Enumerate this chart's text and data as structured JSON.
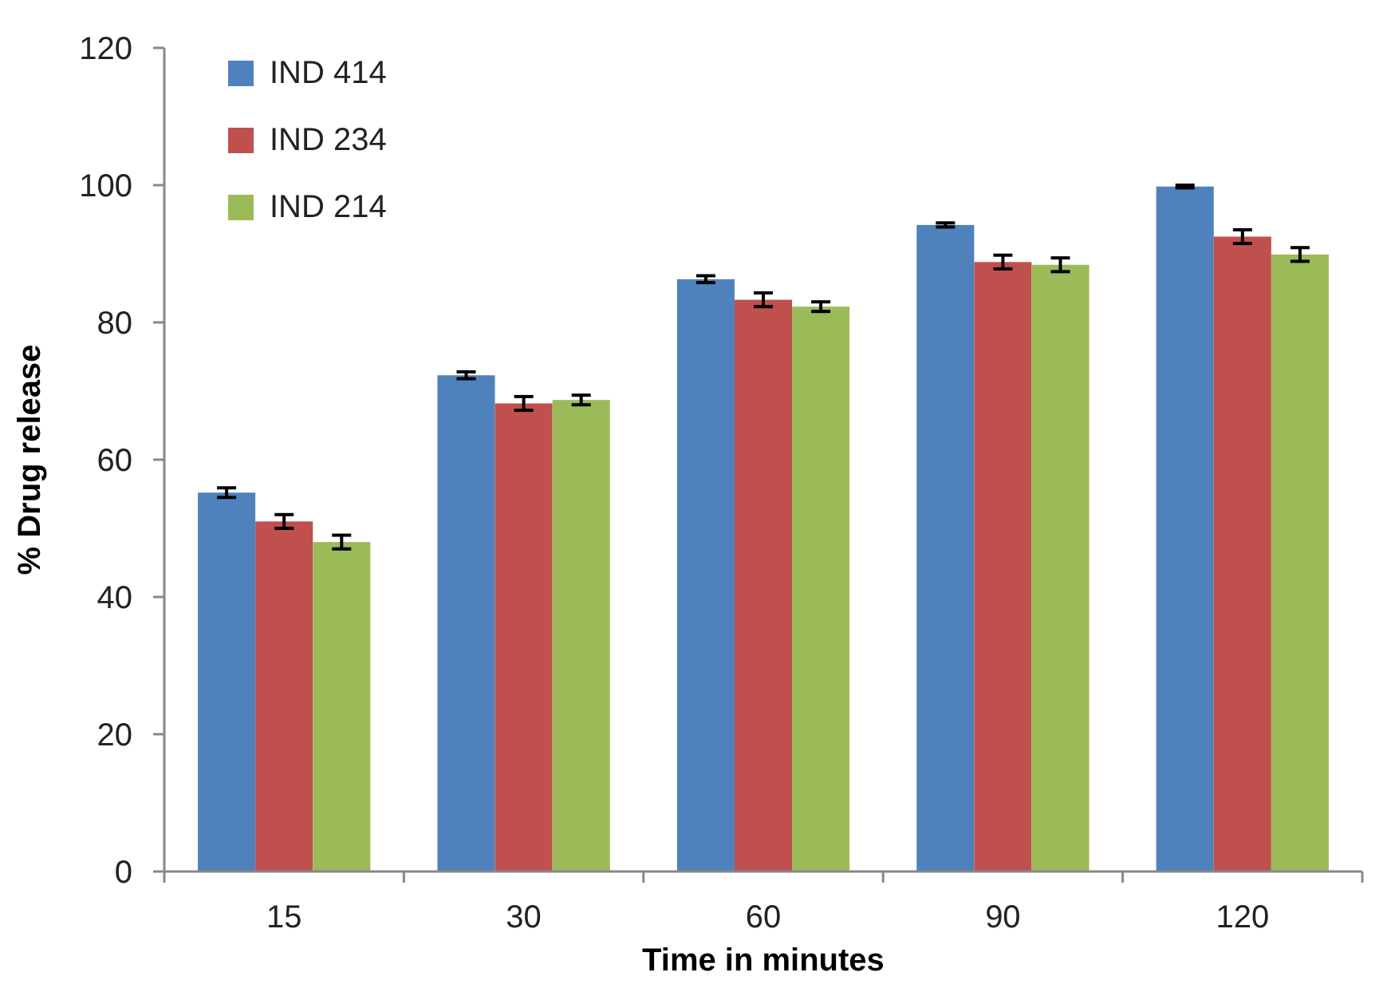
{
  "chart_data": {
    "type": "bar",
    "xlabel": "Time in minutes",
    "ylabel": "% Drug release",
    "categories": [
      "15",
      "30",
      "60",
      "90",
      "120"
    ],
    "ylim": [
      0,
      120
    ],
    "yticks": [
      0,
      20,
      40,
      60,
      80,
      100,
      120
    ],
    "grid": false,
    "legend": "top left",
    "series": [
      {
        "name": "IND 414",
        "color": "#4f81bd",
        "values": [
          55.2,
          72.3,
          86.3,
          94.2,
          99.8
        ],
        "errors": [
          0.7,
          0.5,
          0.5,
          0.3,
          0.2
        ]
      },
      {
        "name": "IND 234",
        "color": "#c0504d",
        "values": [
          51,
          68.2,
          83.3,
          88.8,
          92.5
        ],
        "errors": [
          1,
          1,
          1,
          1,
          1
        ]
      },
      {
        "name": "IND 214",
        "color": "#9bbb59",
        "values": [
          48,
          68.7,
          82.3,
          88.4,
          89.9
        ],
        "errors": [
          1,
          0.7,
          0.7,
          1,
          1
        ]
      }
    ]
  }
}
